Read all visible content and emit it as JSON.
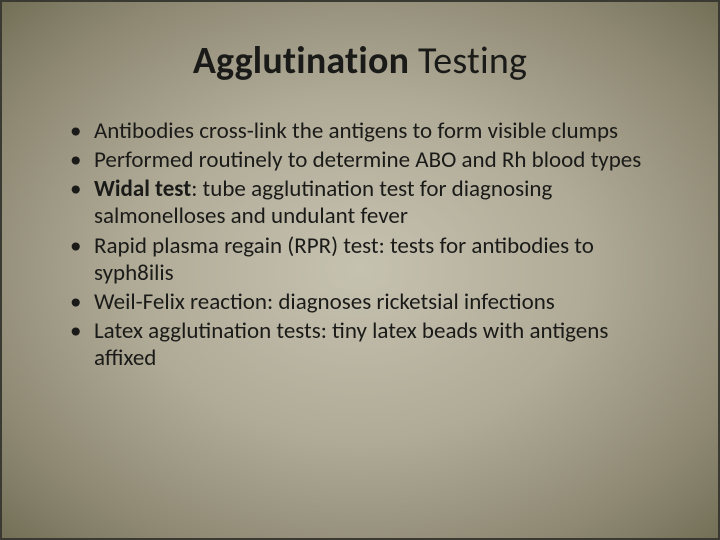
{
  "slide": {
    "title_bold": "Agglutination",
    "title_rest": " Testing",
    "bullets": [
      {
        "prefix": "",
        "bold": "",
        "text": "Antibodies cross-link the antigens to form visible clumps"
      },
      {
        "prefix": "",
        "bold": "",
        "text": "Performed routinely to determine ABO and Rh blood types"
      },
      {
        "prefix": "",
        "bold": "Widal test",
        "text": ":  tube agglutination test for diagnosing salmonelloses and undulant fever"
      },
      {
        "prefix": "",
        "bold": "",
        "text": "Rapid plasma regain (RPR) test:  tests for antibodies to syph8ilis"
      },
      {
        "prefix": "",
        "bold": "",
        "text": "Weil-Felix reaction:  diagnoses ricketsial infections"
      },
      {
        "prefix": "",
        "bold": "",
        "text": "Latex agglutination tests:  tiny latex beads with antigens affixed"
      }
    ]
  },
  "style": {
    "background_gradient": [
      "#c6c2b0",
      "#b0ab97",
      "#8e8873",
      "#737057"
    ],
    "border_color": "#3a3a32",
    "title_fontsize": 38,
    "body_fontsize": 23,
    "text_color": "#1a1a18",
    "font_family": "Calibri"
  }
}
